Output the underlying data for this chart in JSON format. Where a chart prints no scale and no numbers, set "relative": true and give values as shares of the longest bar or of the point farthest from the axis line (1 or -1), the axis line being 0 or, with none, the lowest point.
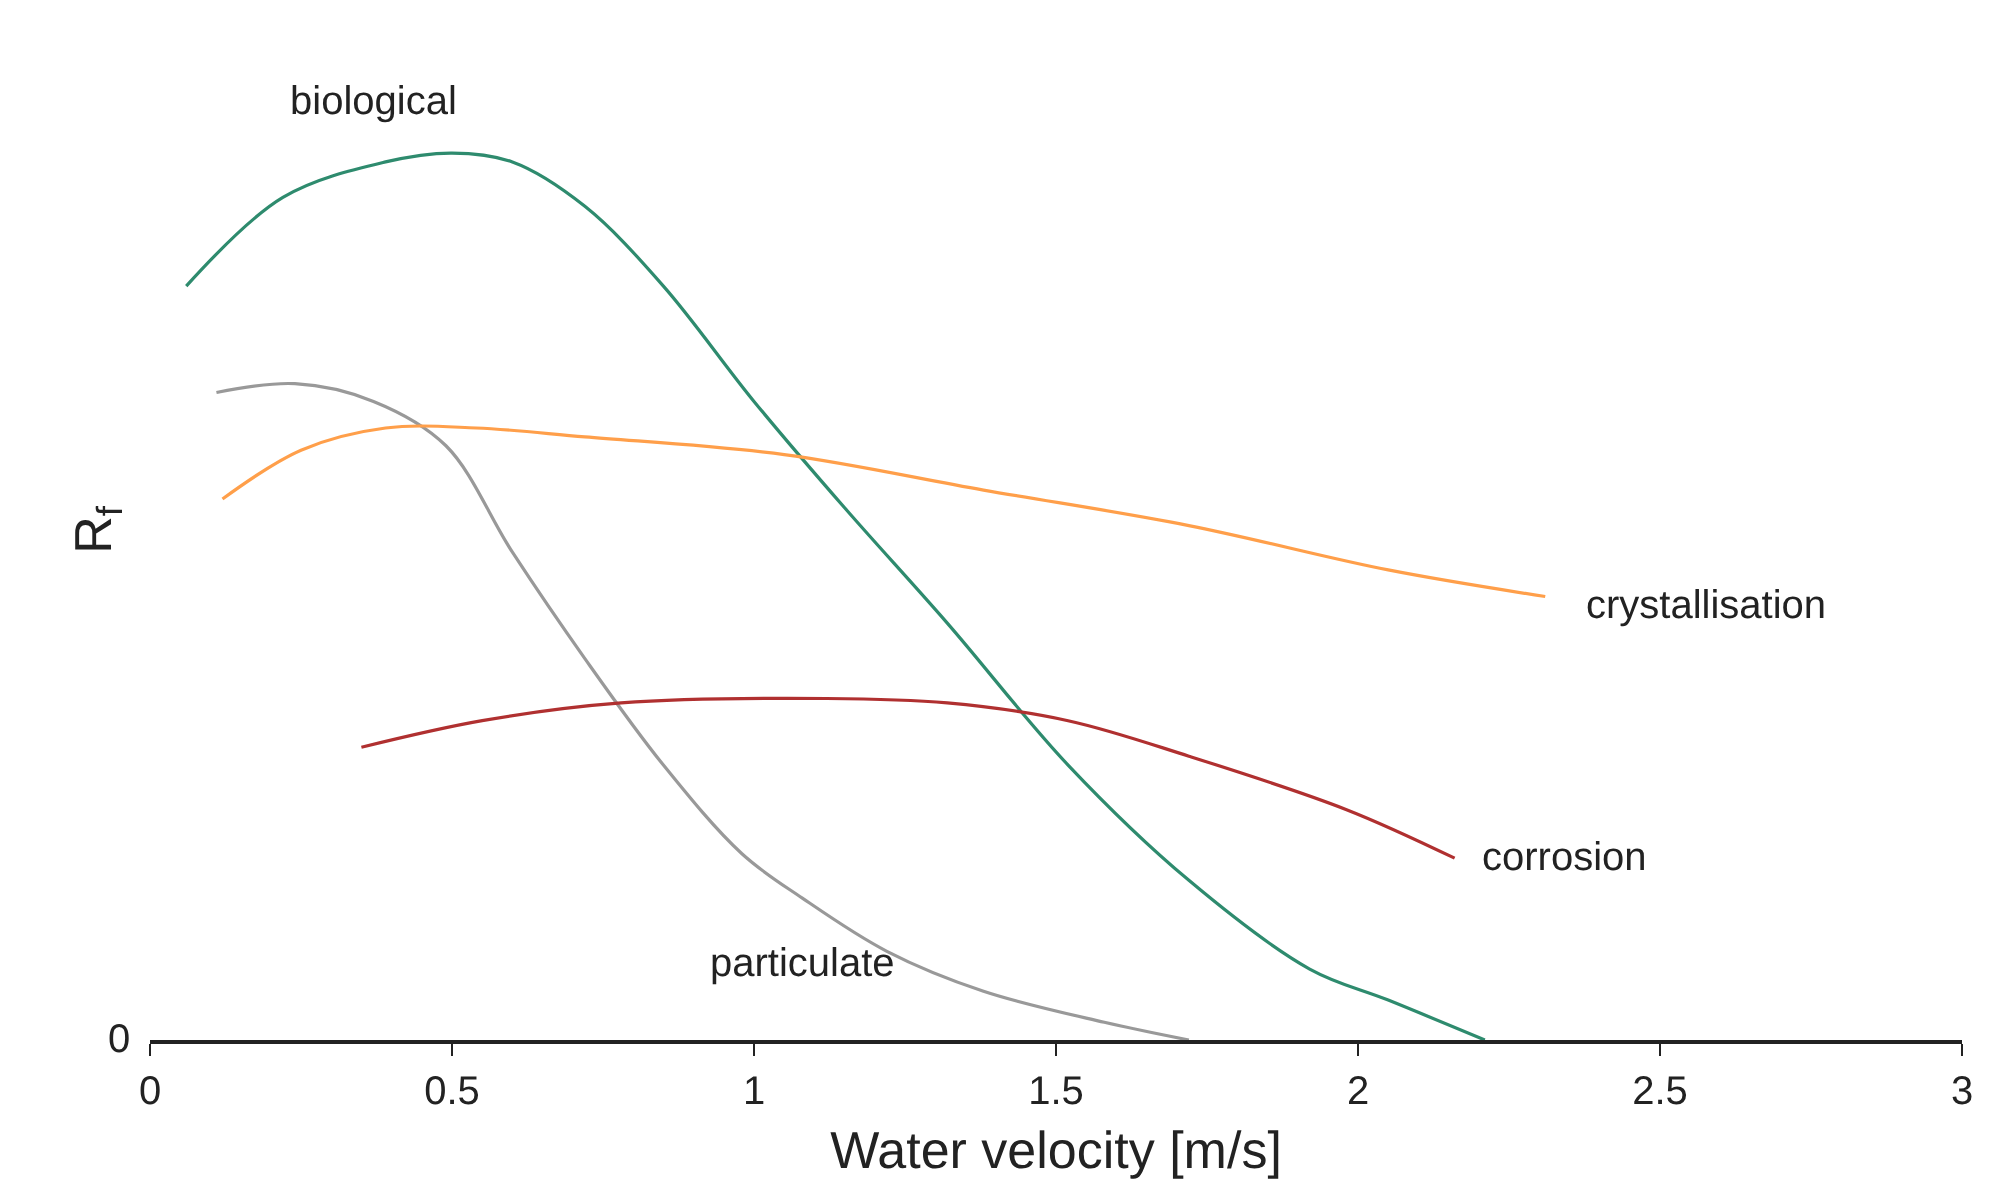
{
  "chart_data": {
    "type": "line",
    "relative": true,
    "xlabel": "Water velocity [m/s]",
    "ylabel": "R$_{f}$",
    "xlim": [
      0,
      3
    ],
    "xticks": [
      0,
      0.5,
      1,
      1.5,
      2,
      2.5,
      3
    ],
    "legend": false,
    "marker": "none",
    "line_style": "solid",
    "series": [
      {
        "name": "biological",
        "color": "#2e8b6e",
        "x": [
          0.06,
          0.22,
          0.39,
          0.5,
          0.6,
          0.72,
          0.85,
          1.0,
          1.15,
          1.32,
          1.52,
          1.72,
          1.92,
          2.05,
          2.21
        ],
        "values": [
          0.85,
          0.95,
          0.99,
          1.0,
          0.99,
          0.94,
          0.85,
          0.72,
          0.6,
          0.47,
          0.31,
          0.18,
          0.08,
          0.045,
          0
        ]
      },
      {
        "name": "particulate",
        "color": "#999999",
        "x": [
          0.11,
          0.24,
          0.37,
          0.49,
          0.6,
          0.72,
          0.85,
          0.98,
          1.08,
          1.22,
          1.38,
          1.58,
          1.72
        ],
        "values": [
          0.73,
          0.74,
          0.72,
          0.67,
          0.55,
          0.43,
          0.31,
          0.21,
          0.16,
          0.1,
          0.055,
          0.02,
          0
        ]
      },
      {
        "name": "crystallisation",
        "color": "#ff9f4a",
        "x": [
          0.12,
          0.25,
          0.39,
          0.54,
          0.72,
          1.05,
          1.38,
          1.72,
          2.05,
          2.31
        ],
        "values": [
          0.61,
          0.665,
          0.69,
          0.69,
          0.68,
          0.66,
          0.62,
          0.58,
          0.53,
          0.5
        ]
      },
      {
        "name": "corrosion",
        "color": "#b03030",
        "x": [
          0.35,
          0.55,
          0.78,
          1.12,
          1.32,
          1.52,
          1.72,
          1.98,
          2.16
        ],
        "values": [
          0.33,
          0.36,
          0.38,
          0.385,
          0.38,
          0.36,
          0.32,
          0.26,
          0.205
        ]
      }
    ],
    "annotations": [
      "0"
    ]
  }
}
